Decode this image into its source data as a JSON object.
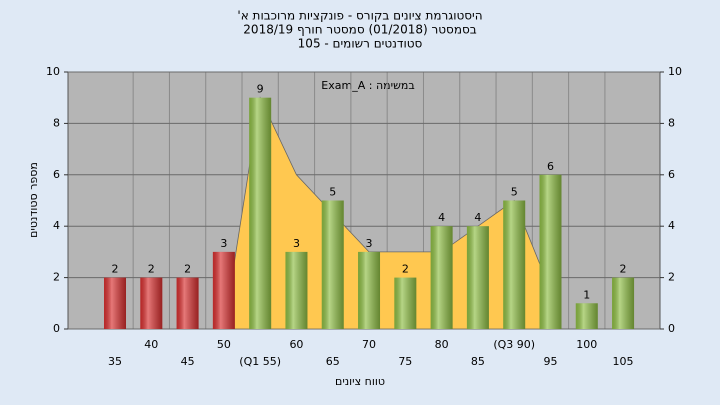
{
  "chart_data": {
    "type": "bar",
    "title": [
      "היסטוגרמת ציונים בקורס - פונקציות מרוכבות א'",
      "בסמסטר (01/2018) סמסטר חורף 2018/19",
      "סטודנטים רשומים - 105"
    ],
    "annotation": "במשימה : Exam_A",
    "x_label": "טווח ציונים",
    "y_label": "מספר סטודנטים",
    "categories": [
      "35",
      "40",
      "45",
      "50",
      "(Q1 55)",
      "60",
      "65",
      "70",
      "75",
      "80",
      "85",
      "(Q3 90)",
      "95",
      "100",
      "105"
    ],
    "values": [
      2,
      2,
      2,
      3,
      9,
      3,
      5,
      3,
      2,
      4,
      4,
      5,
      6,
      1,
      2
    ],
    "colors": [
      "#d93030",
      "#d93030",
      "#d93030",
      "#d93030",
      "#8fbf45",
      "#8fbf45",
      "#8fbf45",
      "#8fbf45",
      "#8fbf45",
      "#8fbf45",
      "#8fbf45",
      "#8fbf45",
      "#8fbf45",
      "#8fbf45",
      "#8fbf45"
    ],
    "area": {
      "color": "#ffc850",
      "values": [
        null,
        null,
        null,
        0,
        9,
        6,
        4.5,
        3,
        3,
        3,
        4,
        5,
        1.5,
        null,
        null
      ]
    },
    "ylim": [
      0,
      10
    ],
    "yticks": [
      0,
      2,
      4,
      6,
      8,
      10
    ],
    "y2lim": [
      0,
      10
    ],
    "y2ticks": [
      0,
      2,
      4,
      6,
      8,
      10
    ],
    "grid": true
  }
}
